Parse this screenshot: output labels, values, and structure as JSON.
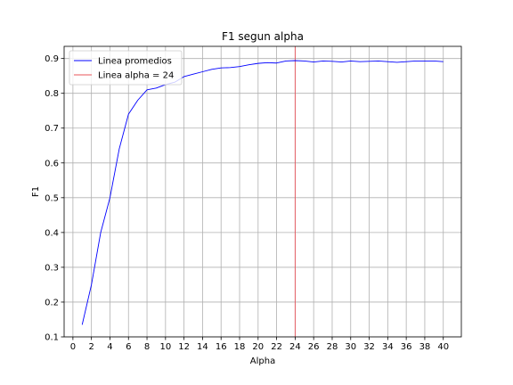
{
  "chart_data": {
    "type": "line",
    "title": "F1 segun alpha",
    "xlabel": "Alpha",
    "ylabel": "F1",
    "xlim": [
      -0.95,
      41.95
    ],
    "ylim": [
      0.1,
      0.935
    ],
    "xticks": [
      0,
      2,
      4,
      6,
      8,
      10,
      12,
      14,
      16,
      18,
      20,
      22,
      24,
      26,
      28,
      30,
      32,
      34,
      36,
      38,
      40
    ],
    "yticks": [
      0.1,
      0.2,
      0.3,
      0.4,
      0.5,
      0.6,
      0.7,
      0.8,
      0.9
    ],
    "grid": true,
    "legend_position": "top-left",
    "series": [
      {
        "name": "Linea promedios",
        "color": "#0000ff",
        "x": [
          1,
          2,
          3,
          4,
          5,
          6,
          7,
          8,
          9,
          10,
          11,
          12,
          13,
          14,
          15,
          16,
          17,
          18,
          19,
          20,
          21,
          22,
          23,
          24,
          25,
          26,
          27,
          28,
          29,
          30,
          31,
          32,
          33,
          34,
          35,
          36,
          37,
          38,
          39,
          40
        ],
        "y": [
          0.135,
          0.25,
          0.4,
          0.5,
          0.64,
          0.74,
          0.78,
          0.81,
          0.815,
          0.825,
          0.832,
          0.848,
          0.855,
          0.862,
          0.869,
          0.873,
          0.874,
          0.877,
          0.882,
          0.886,
          0.888,
          0.887,
          0.893,
          0.894,
          0.893,
          0.89,
          0.893,
          0.892,
          0.89,
          0.893,
          0.891,
          0.892,
          0.893,
          0.891,
          0.889,
          0.891,
          0.893,
          0.893,
          0.893,
          0.891
        ]
      }
    ],
    "vlines": [
      {
        "name": "Linea alpha = 24",
        "x": 24,
        "color": "#e8545a"
      }
    ]
  }
}
